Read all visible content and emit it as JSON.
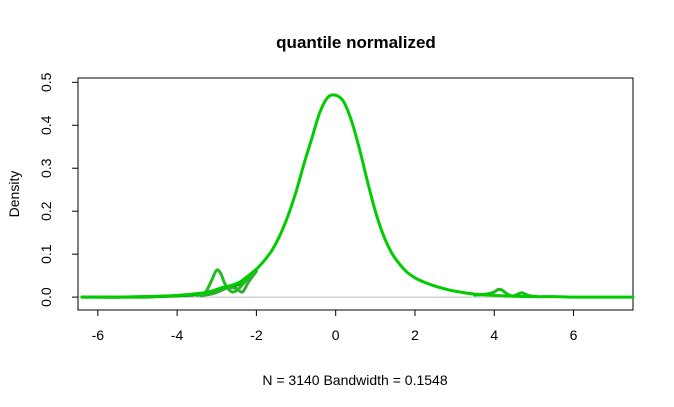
{
  "chart_data": {
    "type": "line",
    "title": "quantile normalized",
    "xlabel": "N = 3140   Bandwidth = 0.1548",
    "ylabel": "Density",
    "xlim": [
      -6.5,
      7.5
    ],
    "ylim": [
      -0.03,
      0.51
    ],
    "x_ticks": [
      -6,
      -4,
      -2,
      0,
      2,
      4,
      6
    ],
    "x_tick_labels": [
      "-6",
      "-4",
      "-2",
      "0",
      "2",
      "4",
      "6"
    ],
    "y_ticks": [
      0.0,
      0.1,
      0.2,
      0.3,
      0.4,
      0.5
    ],
    "y_tick_labels": [
      "0.0",
      "0.1",
      "0.2",
      "0.3",
      "0.4",
      "0.5"
    ],
    "baseline": 0,
    "grid": false,
    "legend": "none",
    "series": [
      {
        "color": "#00cc00",
        "x": [
          -6.4,
          -6.0,
          -5.5,
          -5.0,
          -4.5,
          -4.0,
          -3.5,
          -3.2,
          -3.0,
          -2.8,
          -2.6,
          -2.4,
          -2.2,
          -2.0,
          -1.8,
          -1.6,
          -1.4,
          -1.2,
          -1.0,
          -0.8,
          -0.6,
          -0.4,
          -0.2,
          0.0,
          0.2,
          0.4,
          0.6,
          0.8,
          1.0,
          1.2,
          1.4,
          1.6,
          1.8,
          2.0,
          2.2,
          2.4,
          2.6,
          2.8,
          3.0,
          3.5,
          4.0,
          4.5,
          5.0,
          5.5,
          6.0,
          6.5,
          7.0,
          7.5
        ],
        "y": [
          0.0,
          0.0,
          0.0,
          0.001,
          0.002,
          0.004,
          0.008,
          0.012,
          0.018,
          0.024,
          0.028,
          0.036,
          0.05,
          0.065,
          0.085,
          0.11,
          0.145,
          0.19,
          0.245,
          0.31,
          0.37,
          0.43,
          0.465,
          0.47,
          0.455,
          0.41,
          0.345,
          0.27,
          0.2,
          0.145,
          0.105,
          0.078,
          0.058,
          0.045,
          0.036,
          0.029,
          0.023,
          0.018,
          0.014,
          0.007,
          0.004,
          0.002,
          0.001,
          0.001,
          0.0,
          0.0,
          0.0,
          0.0
        ]
      },
      {
        "color": "#22bb22",
        "x": [
          -3.5,
          -3.3,
          -3.2,
          -3.1,
          -3.0,
          -2.9,
          -2.8,
          -2.7,
          -2.6,
          -2.5,
          -2.4,
          -2.2,
          -2.0
        ],
        "y": [
          0.004,
          0.01,
          0.025,
          0.045,
          0.063,
          0.055,
          0.032,
          0.018,
          0.012,
          0.015,
          0.024,
          0.045,
          0.065
        ]
      },
      {
        "color": "#33aa33",
        "x": [
          -3.4,
          -3.1,
          -2.9,
          -2.7,
          -2.5,
          -2.35,
          -2.2,
          -2.0
        ],
        "y": [
          0.003,
          0.008,
          0.015,
          0.022,
          0.02,
          0.012,
          0.035,
          0.06
        ]
      },
      {
        "color": "#11c011",
        "x": [
          3.5,
          3.8,
          4.0,
          4.1,
          4.2,
          4.3,
          4.4,
          4.5,
          4.6,
          4.7,
          4.8,
          4.9,
          5.1
        ],
        "y": [
          0.005,
          0.007,
          0.012,
          0.018,
          0.016,
          0.009,
          0.004,
          0.003,
          0.007,
          0.01,
          0.006,
          0.003,
          0.001
        ]
      },
      {
        "color": "#009900",
        "x": [
          -6.4,
          -5.0,
          -4.0,
          -3.6,
          -3.4,
          -3.2,
          -3.0,
          -2.8,
          -2.6,
          -2.4,
          -2.2
        ],
        "y": [
          0.0,
          0.0,
          0.003,
          0.005,
          0.008,
          0.012,
          0.016,
          0.022,
          0.025,
          0.032,
          0.048
        ]
      }
    ]
  }
}
